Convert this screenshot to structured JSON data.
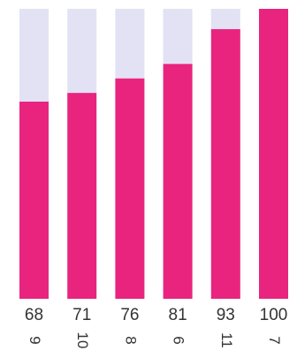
{
  "chart_data": {
    "type": "bar",
    "stacked_to_max": true,
    "categories": [
      "9",
      "10",
      "8",
      "6",
      "11",
      "7"
    ],
    "values": [
      68,
      71,
      76,
      81,
      93,
      100
    ],
    "value_labels": [
      "68",
      "71",
      "76",
      "81",
      "93",
      "100"
    ],
    "ylim": [
      0,
      100
    ],
    "grid": false,
    "legend": "none",
    "colors": {
      "bar": "#e8247f",
      "remainder": "#e2e2f4",
      "text": "#333333"
    }
  }
}
